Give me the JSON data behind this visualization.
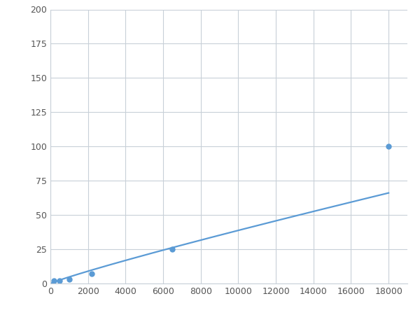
{
  "x": [
    200,
    500,
    1000,
    2200,
    6500,
    18000
  ],
  "y": [
    2,
    2.2,
    3,
    7,
    25,
    100
  ],
  "line_color": "#5b9bd5",
  "marker_color": "#5b9bd5",
  "marker_size": 5,
  "line_width": 1.6,
  "xlim": [
    0,
    19000
  ],
  "ylim": [
    0,
    200
  ],
  "xticks": [
    0,
    2000,
    4000,
    6000,
    8000,
    10000,
    12000,
    14000,
    16000,
    18000
  ],
  "yticks": [
    0,
    25,
    50,
    75,
    100,
    125,
    150,
    175,
    200
  ],
  "grid_color": "#c8d0d8",
  "bg_color": "#ffffff",
  "figsize": [
    6.0,
    4.5
  ],
  "dpi": 100
}
